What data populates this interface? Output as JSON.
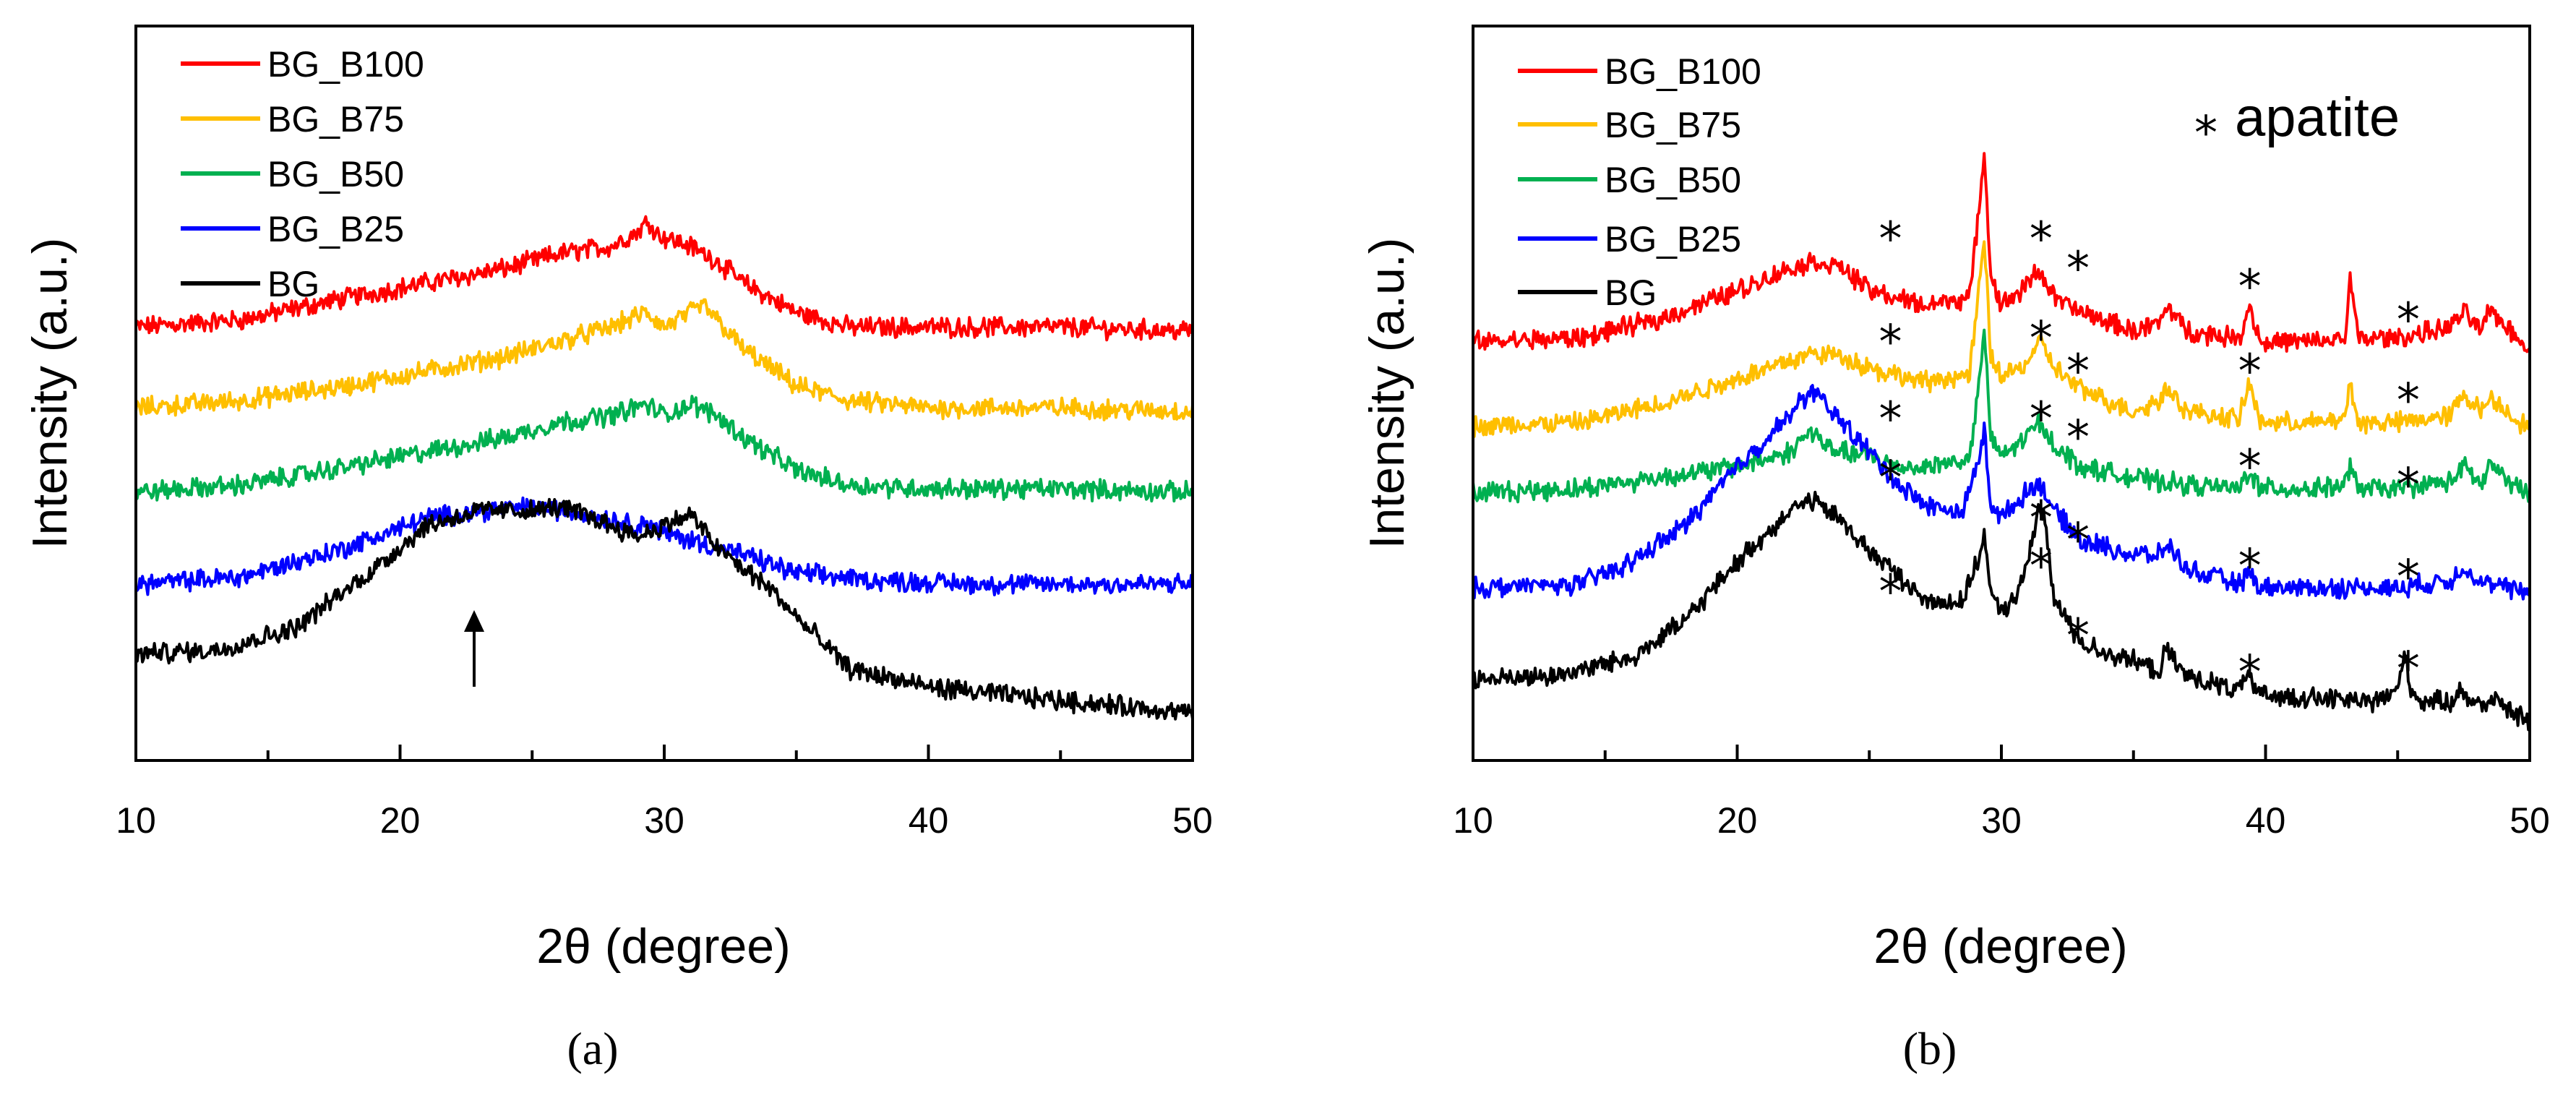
{
  "chart_data": [
    {
      "type": "line",
      "panel_label": "(a)",
      "xlabel": "2θ (degree)",
      "ylabel": "Intensity (a.u.)",
      "xlim": [
        10,
        50
      ],
      "xticks": [
        10,
        20,
        30,
        40,
        50
      ],
      "ylim": [
        0,
        10
      ],
      "series": [
        {
          "name": "BG_B100",
          "color": "#ff0000",
          "x": [
            10,
            14,
            18,
            21,
            24,
            26,
            28,
            29,
            29.4,
            29.8,
            31,
            32,
            33,
            35,
            37,
            40,
            45,
            50
          ],
          "y": [
            5.9,
            6.0,
            6.3,
            6.5,
            6.7,
            6.9,
            7.0,
            7.2,
            7.35,
            7.15,
            7.0,
            6.8,
            6.5,
            6.1,
            5.9,
            5.9,
            5.9,
            5.85
          ]
        },
        {
          "name": "BG_B75",
          "color": "#ffbf00",
          "x": [
            10,
            14,
            18,
            21,
            24,
            26,
            28,
            29.3,
            30,
            31.5,
            32,
            33,
            35,
            37,
            40,
            45,
            50
          ],
          "y": [
            4.8,
            4.9,
            5.1,
            5.3,
            5.5,
            5.7,
            5.9,
            6.1,
            5.9,
            6.2,
            6.0,
            5.6,
            5.1,
            4.9,
            4.8,
            4.8,
            4.75
          ]
        },
        {
          "name": "BG_B50",
          "color": "#00b050",
          "x": [
            10,
            14,
            18,
            21,
            24,
            26,
            28,
            29.3,
            30,
            31,
            32,
            33,
            35,
            37,
            40,
            45,
            50
          ],
          "y": [
            3.65,
            3.75,
            4.0,
            4.2,
            4.4,
            4.6,
            4.7,
            4.85,
            4.7,
            4.85,
            4.7,
            4.4,
            3.95,
            3.75,
            3.7,
            3.7,
            3.65
          ]
        },
        {
          "name": "BG_B25",
          "color": "#0000ff",
          "x": [
            10,
            14,
            18,
            21,
            23,
            25,
            27,
            29,
            29.3,
            30,
            31,
            33,
            35,
            38,
            42,
            50
          ],
          "y": [
            2.4,
            2.5,
            2.9,
            3.3,
            3.4,
            3.45,
            3.35,
            3.2,
            3.25,
            3.1,
            3.0,
            2.8,
            2.55,
            2.45,
            2.4,
            2.4
          ]
        },
        {
          "name": "BG",
          "color": "#000000",
          "x": [
            10,
            13,
            16,
            19,
            21,
            23,
            25,
            26,
            27,
            29,
            30,
            31,
            32,
            33,
            34,
            35,
            37,
            40,
            44,
            50
          ],
          "y": [
            1.45,
            1.5,
            1.8,
            2.6,
            3.2,
            3.4,
            3.4,
            3.45,
            3.35,
            3.05,
            3.2,
            3.35,
            2.9,
            2.6,
            2.35,
            1.95,
            1.25,
            1.0,
            0.85,
            0.65
          ]
        }
      ],
      "annotations": [
        {
          "type": "arrow",
          "x": 22.6,
          "y_from": 1.0,
          "y_to": 2.05
        }
      ]
    },
    {
      "type": "line",
      "panel_label": "(b)",
      "xlabel": "2θ (degree)",
      "ylabel": "Intensity (a.u.)",
      "xlim": [
        10,
        50
      ],
      "xticks": [
        10,
        20,
        30,
        40,
        50
      ],
      "ylim": [
        0,
        10
      ],
      "series": [
        {
          "name": "BG_B100",
          "color": "#ff0000",
          "x": [
            10,
            14,
            17,
            20,
            22,
            23,
            24,
            25,
            26,
            27,
            28.8,
            29.15,
            29.35,
            29.6,
            30,
            30.8,
            31.4,
            32,
            33,
            35,
            36,
            36.3,
            37,
            39,
            39.4,
            39.8,
            42,
            43,
            43.2,
            43.5,
            45,
            47,
            47.5,
            48.2,
            48.5,
            49,
            50
          ],
          "y": [
            5.7,
            5.75,
            6.0,
            6.4,
            6.7,
            6.8,
            6.7,
            6.4,
            6.3,
            6.2,
            6.3,
            7.5,
            8.3,
            6.6,
            6.2,
            6.4,
            6.7,
            6.3,
            6.1,
            5.85,
            5.95,
            6.2,
            5.85,
            5.75,
            6.2,
            5.7,
            5.7,
            5.75,
            6.55,
            5.75,
            5.75,
            5.9,
            6.1,
            5.85,
            6.15,
            5.95,
            5.6
          ]
        },
        {
          "name": "BG_B75",
          "color": "#ffbf00",
          "x": [
            10,
            14,
            17,
            20,
            22,
            23,
            24,
            25,
            26,
            27,
            28.8,
            29.15,
            29.35,
            29.6,
            30,
            30.8,
            31.5,
            32,
            33,
            35,
            36,
            36.3,
            37,
            39,
            39.4,
            39.8,
            42,
            43,
            43.2,
            43.5,
            45,
            47,
            47.5,
            48.2,
            48.5,
            49,
            50
          ],
          "y": [
            4.55,
            4.6,
            4.85,
            5.2,
            5.45,
            5.55,
            5.5,
            5.35,
            5.25,
            5.15,
            5.25,
            6.4,
            7.1,
            5.5,
            5.25,
            5.35,
            5.7,
            5.35,
            5.05,
            4.75,
            4.9,
            5.1,
            4.75,
            4.65,
            5.15,
            4.6,
            4.6,
            4.65,
            5.15,
            4.6,
            4.6,
            4.7,
            5.0,
            4.75,
            4.95,
            4.8,
            4.5
          ]
        },
        {
          "name": "BG_B50",
          "color": "#00b050",
          "x": [
            10,
            14,
            17,
            20,
            22,
            22.8,
            23.4,
            24,
            25,
            26,
            27,
            28.8,
            29.15,
            29.35,
            29.6,
            30,
            30.8,
            31.4,
            32,
            33,
            35,
            37,
            39,
            39.4,
            39.8,
            42,
            43,
            43.2,
            43.5,
            45,
            47,
            47.5,
            48.2,
            48.5,
            49,
            50
          ],
          "y": [
            3.65,
            3.7,
            3.85,
            4.0,
            4.2,
            4.5,
            4.25,
            4.2,
            4.15,
            4.0,
            4.0,
            4.1,
            5.1,
            5.9,
            4.35,
            4.15,
            4.35,
            4.6,
            4.3,
            4.0,
            3.85,
            3.75,
            3.7,
            3.95,
            3.7,
            3.7,
            3.75,
            4.0,
            3.7,
            3.7,
            3.8,
            4.0,
            3.75,
            4.05,
            3.85,
            3.6
          ]
        },
        {
          "name": "BG_B25",
          "color": "#0000ff",
          "x": [
            10,
            14,
            16,
            18,
            20,
            22,
            22.8,
            24,
            25,
            26,
            27,
            28.5,
            29.15,
            29.35,
            29.6,
            30,
            30.8,
            31.4,
            32,
            33,
            35,
            36,
            36.3,
            37,
            39,
            39.4,
            39.8,
            42,
            45,
            47,
            47.5,
            48,
            49,
            50
          ],
          "y": [
            2.35,
            2.4,
            2.7,
            3.2,
            4.0,
            4.7,
            5.05,
            4.6,
            4.2,
            3.8,
            3.5,
            3.35,
            4.1,
            4.5,
            3.5,
            3.3,
            3.6,
            3.8,
            3.4,
            3.0,
            2.8,
            2.8,
            2.95,
            2.6,
            2.4,
            2.55,
            2.35,
            2.35,
            2.35,
            2.45,
            2.65,
            2.45,
            2.35,
            2.3
          ]
        },
        {
          "name": "BG",
          "color": "#000000",
          "x": [
            10,
            13,
            16,
            18,
            20,
            22,
            22.8,
            24,
            25,
            26,
            27,
            28.5,
            29.15,
            29.35,
            29.6,
            30,
            30.8,
            31.4,
            31.6,
            32,
            33,
            35,
            36,
            36.2,
            37,
            39,
            39.3,
            39.6,
            42,
            44,
            45,
            45.25,
            45.5,
            46,
            47,
            47.4,
            47.8,
            48.3,
            48.7,
            49,
            50
          ],
          "y": [
            1.1,
            1.15,
            1.4,
            1.9,
            2.7,
            3.4,
            3.55,
            3.25,
            2.85,
            2.55,
            2.2,
            2.15,
            2.75,
            3.1,
            2.25,
            2.0,
            2.4,
            3.45,
            3.3,
            2.2,
            1.6,
            1.35,
            1.2,
            1.5,
            1.15,
            0.95,
            1.2,
            0.9,
            0.85,
            0.8,
            0.95,
            1.5,
            0.95,
            0.8,
            0.8,
            0.95,
            0.8,
            0.75,
            0.9,
            0.7,
            0.55
          ]
        }
      ],
      "star_markers": [
        {
          "x": 25.8,
          "y": 7.1
        },
        {
          "x": 31.5,
          "y": 7.1
        },
        {
          "x": 32.9,
          "y": 6.7
        },
        {
          "x": 39.4,
          "y": 6.45
        },
        {
          "x": 45.4,
          "y": 6.0
        },
        {
          "x": 25.8,
          "y": 5.7
        },
        {
          "x": 31.5,
          "y": 5.75
        },
        {
          "x": 32.9,
          "y": 5.3
        },
        {
          "x": 39.4,
          "y": 5.3
        },
        {
          "x": 45.4,
          "y": 4.9
        },
        {
          "x": 25.8,
          "y": 4.65
        },
        {
          "x": 31.5,
          "y": 4.65
        },
        {
          "x": 32.9,
          "y": 4.4
        },
        {
          "x": 39.4,
          "y": 4.0
        },
        {
          "x": 45.4,
          "y": 3.75
        },
        {
          "x": 25.8,
          "y": 3.85
        },
        {
          "x": 31.5,
          "y": 3.3
        },
        {
          "x": 32.9,
          "y": 3.0
        },
        {
          "x": 39.4,
          "y": 2.65
        },
        {
          "x": 45.4,
          "y": 2.5
        },
        {
          "x": 25.8,
          "y": 2.3
        },
        {
          "x": 31.5,
          "y": 2.65
        },
        {
          "x": 32.9,
          "y": 1.7
        },
        {
          "x": 39.4,
          "y": 1.2
        },
        {
          "x": 45.4,
          "y": 1.25
        }
      ],
      "annotation_text": "apatite",
      "annotation_symbol": "*"
    }
  ]
}
